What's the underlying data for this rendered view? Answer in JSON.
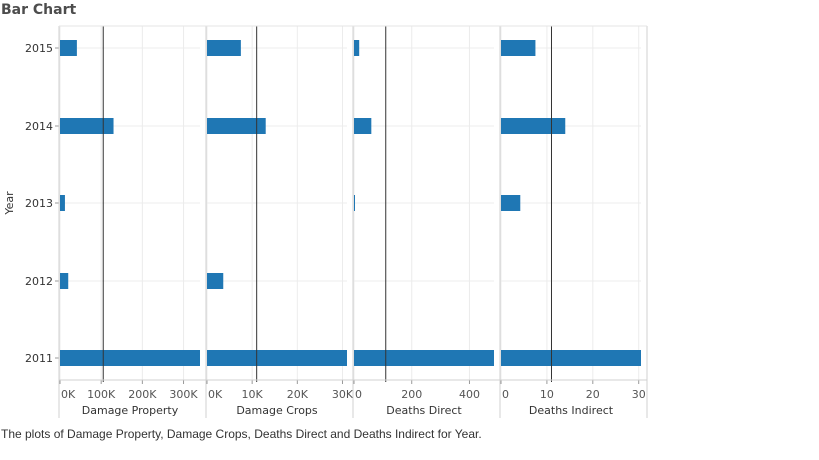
{
  "title": "Bar Chart",
  "caption": "The plots of Damage Property, Damage Crops, Deaths Direct and Deaths Indirect for Year.",
  "y_axis_title": "Year",
  "bar_color": "#1f77b4",
  "chart_data": {
    "type": "bar",
    "orientation": "horizontal",
    "categories": [
      "2015",
      "2014",
      "2013",
      "2012",
      "2011"
    ],
    "grid": true,
    "panels": [
      {
        "name": "Damage Property",
        "xlabel": "Damage Property",
        "xlim": [
          0,
          340000
        ],
        "ticks": [
          0,
          100000,
          200000,
          300000
        ],
        "tick_labels": [
          "0K",
          "100K",
          "200K",
          "300K"
        ],
        "reference_line": 105000,
        "values": [
          41000,
          130000,
          12000,
          20000,
          340000
        ]
      },
      {
        "name": "Damage Crops",
        "xlabel": "Damage Crops",
        "xlim": [
          0,
          31000
        ],
        "ticks": [
          0,
          10000,
          20000,
          30000
        ],
        "tick_labels": [
          "0K",
          "10K",
          "20K",
          "30K"
        ],
        "reference_line": 11000,
        "values": [
          7500,
          13000,
          0,
          3600,
          31000
        ]
      },
      {
        "name": "Deaths Direct",
        "xlabel": "Deaths Direct",
        "xlim": [
          0,
          485
        ],
        "ticks": [
          0,
          200,
          400
        ],
        "tick_labels": [
          "0",
          "200",
          "400"
        ],
        "reference_line": 110,
        "values": [
          18,
          60,
          3,
          0,
          485
        ]
      },
      {
        "name": "Deaths Indirect",
        "xlabel": "Deaths Indirect",
        "xlim": [
          0,
          30.5
        ],
        "ticks": [
          0,
          10,
          20,
          30
        ],
        "tick_labels": [
          "0",
          "10",
          "20",
          "30"
        ],
        "reference_line": 11,
        "values": [
          7.5,
          14,
          4.2,
          0,
          30.5
        ]
      }
    ]
  }
}
